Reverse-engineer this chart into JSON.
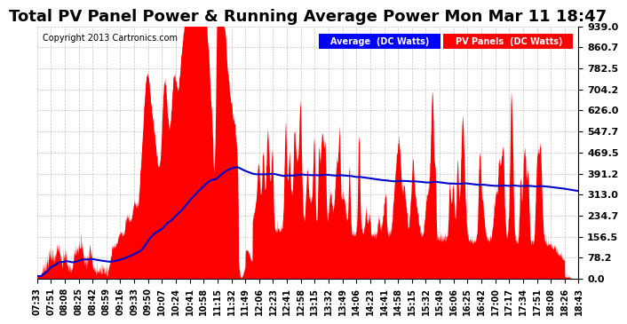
{
  "title": "Total PV Panel Power & Running Average Power Mon Mar 11 18:47",
  "copyright": "Copyright 2013 Cartronics.com",
  "legend_avg": "Average  (DC Watts)",
  "legend_pv": "PV Panels  (DC Watts)",
  "ylabel_right_values": [
    0.0,
    78.2,
    156.5,
    234.7,
    313.0,
    391.2,
    469.5,
    547.7,
    626.0,
    704.2,
    782.5,
    860.7,
    939.0
  ],
  "ymax": 939.0,
  "ymin": 0.0,
  "bg_color": "#ffffff",
  "plot_bg_color": "#ffffff",
  "grid_color": "#aaaaaa",
  "pv_color": "#ff0000",
  "avg_color": "#0000cc",
  "title_fontsize": 13,
  "x_tick_labels": [
    "07:33",
    "07:51",
    "08:08",
    "08:25",
    "08:42",
    "08:59",
    "09:16",
    "09:33",
    "09:50",
    "10:07",
    "10:24",
    "10:41",
    "10:58",
    "11:15",
    "11:32",
    "11:49",
    "12:06",
    "12:23",
    "12:41",
    "12:58",
    "13:15",
    "13:32",
    "13:49",
    "14:06",
    "14:23",
    "14:41",
    "14:58",
    "15:15",
    "15:32",
    "15:49",
    "16:06",
    "16:25",
    "16:42",
    "17:00",
    "17:17",
    "17:34",
    "17:51",
    "18:08",
    "18:26",
    "18:43"
  ]
}
